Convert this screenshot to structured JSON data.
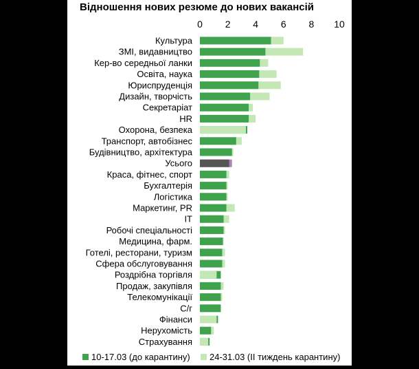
{
  "chart_data": {
    "type": "bar",
    "orientation": "horizontal",
    "stacking": "overlay",
    "title": "Відношення нових резюме до нових вакансій",
    "xlim": [
      0,
      10
    ],
    "xticks": [
      0,
      2,
      4,
      6,
      8,
      10
    ],
    "axis_position": "top",
    "grid": false,
    "legend_position": "bottom",
    "categories": [
      "Культура",
      "ЗМІ, видавництво",
      "Кер-во середньої ланки",
      "Освіта, наука",
      "Юриспруденція",
      "Дизайн, творчість",
      "Секретаріат",
      "HR",
      "Охорона, безпека",
      "Транспорт, автобізнес",
      "Будівництво, архітектура",
      "Усього",
      "Краса, фітнес, спорт",
      "Бухгалтерія",
      "Логістика",
      "Маркетинг, PR",
      "IT",
      "Робочі спеціальності",
      "Медицина, фарм.",
      "Готелі, ресторани, туризм",
      "Сфера обслуговування",
      "Роздрібна торгівля",
      "Продаж, закупівля",
      "Телекомунікації",
      "С/г",
      "Фінанси",
      "Нерухомість",
      "Страхування"
    ],
    "series": [
      {
        "name": "10-17.03 (до карантину)",
        "color": "#3fa34d",
        "highlight_color": "#555555",
        "values": [
          5.1,
          4.7,
          4.3,
          4.25,
          4.2,
          3.6,
          3.5,
          3.5,
          3.4,
          2.6,
          2.3,
          2.1,
          1.9,
          1.9,
          1.9,
          1.9,
          1.7,
          1.7,
          1.65,
          1.6,
          1.6,
          1.5,
          1.5,
          1.5,
          1.5,
          1.3,
          0.8,
          0.7
        ]
      },
      {
        "name": "24-31.03 (II тиждень карантину)",
        "color": "#c3e8b6",
        "highlight_color": "#b07fc0",
        "values": [
          6.0,
          7.4,
          4.9,
          5.5,
          5.8,
          5.0,
          3.8,
          4.0,
          3.3,
          3.0,
          2.4,
          2.3,
          2.1,
          2.0,
          2.0,
          2.5,
          2.1,
          1.8,
          1.7,
          1.8,
          1.8,
          1.2,
          1.7,
          1.6,
          1.5,
          1.2,
          1.0,
          0.6
        ]
      }
    ],
    "highlight_category": "Усього"
  }
}
